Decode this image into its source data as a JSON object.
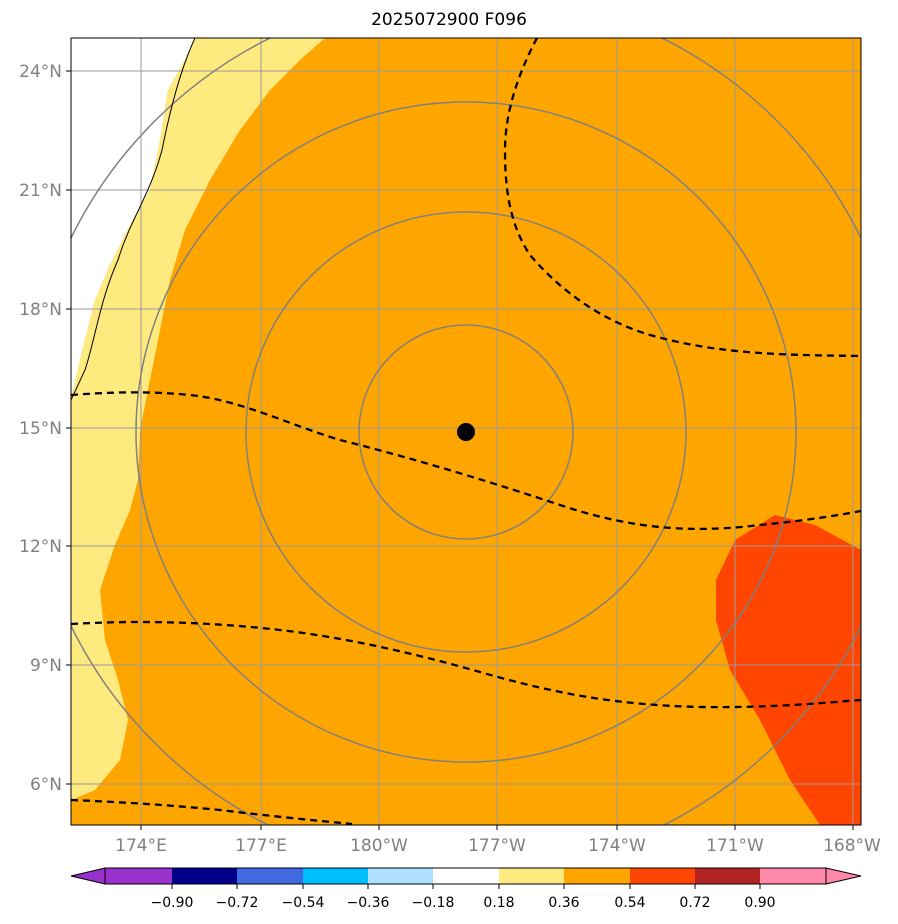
{
  "title": "2025072900 F096",
  "map": {
    "lat_range": [
      5,
      25
    ],
    "lon_range": [
      172.25,
      192.0
    ],
    "lat_ticks": [
      "24°N",
      "21°N",
      "18°N",
      "15°N",
      "12°N",
      "9°N",
      "6°N"
    ],
    "lon_ticks": [
      "174°E",
      "177°E",
      "180°W",
      "177°W",
      "174°W",
      "171°W",
      "168°W"
    ],
    "center_marker": {
      "lat": 14.9,
      "lon": 182.2
    },
    "field_colors": {
      "bg": "#ffa500",
      "light": "#ffea80",
      "hot": "#ff4500"
    }
  },
  "colorbar": {
    "labels": [
      "−0.90",
      "−0.72",
      "−0.54",
      "−0.36",
      "−0.18",
      "0.18",
      "0.36",
      "0.54",
      "0.72",
      "0.90"
    ],
    "colors": [
      "#9932cc",
      "#00008b",
      "#4169e1",
      "#00bfff",
      "#b0e0ff",
      "#ffffff",
      "#ffea80",
      "#ffa500",
      "#ff4500",
      "#b22222",
      "#ff88aa"
    ]
  }
}
